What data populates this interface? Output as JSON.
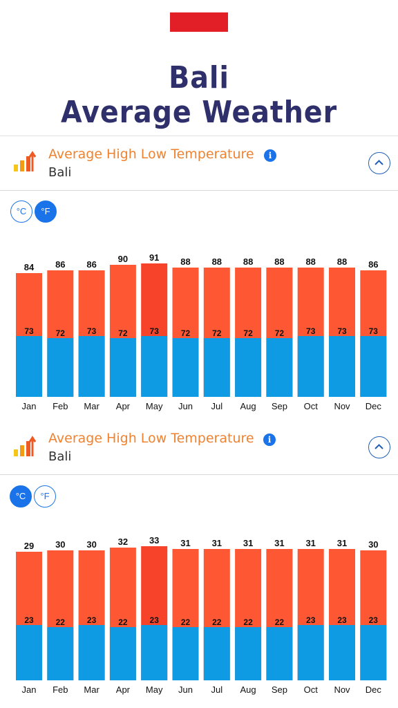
{
  "page": {
    "title_line1": "Bali",
    "title_line2": "Average Weather",
    "flag_color": "#e21f26"
  },
  "colors": {
    "high_bar": "#fe5733",
    "high_bar_peak": "#f8432b",
    "low_bar": "#0f9be3",
    "title_accent": "#f0822f",
    "heading": "#2f2f6b",
    "active_blue": "#1a73e8"
  },
  "sections": [
    {
      "title": "Average High Low Temperature",
      "subtitle": "Bali",
      "icon": "bar-chart-up-arrow-icon",
      "info_icon": "i",
      "collapse_icon": "chevron-up-icon",
      "units": [
        {
          "label": "°C",
          "active": false
        },
        {
          "label": "°F",
          "active": true
        }
      ]
    },
    {
      "title": "Average High Low Temperature",
      "subtitle": "Bali",
      "icon": "bar-chart-up-arrow-icon",
      "info_icon": "i",
      "collapse_icon": "chevron-up-icon",
      "units": [
        {
          "label": "°C",
          "active": true
        },
        {
          "label": "°F",
          "active": false
        }
      ]
    }
  ],
  "chart_data": [
    {
      "type": "bar",
      "unit": "°F",
      "categories": [
        "Jan",
        "Feb",
        "Mar",
        "Apr",
        "May",
        "Jun",
        "Jul",
        "Aug",
        "Sep",
        "Oct",
        "Nov",
        "Dec"
      ],
      "series": [
        {
          "values": [
            84,
            86,
            86,
            90,
            91,
            88,
            88,
            88,
            88,
            88,
            88,
            86
          ]
        },
        {
          "values": [
            73,
            72,
            73,
            72,
            73,
            72,
            72,
            72,
            72,
            73,
            73,
            73
          ]
        }
      ]
    },
    {
      "type": "bar",
      "unit": "°C",
      "categories": [
        "Jan",
        "Feb",
        "Mar",
        "Apr",
        "May",
        "Jun",
        "Jul",
        "Aug",
        "Sep",
        "Oct",
        "Nov",
        "Dec"
      ],
      "series": [
        {
          "values": [
            29,
            30,
            30,
            32,
            33,
            31,
            31,
            31,
            31,
            31,
            31,
            30
          ]
        },
        {
          "values": [
            23,
            22,
            23,
            22,
            23,
            22,
            22,
            22,
            22,
            23,
            23,
            23
          ]
        }
      ]
    }
  ]
}
